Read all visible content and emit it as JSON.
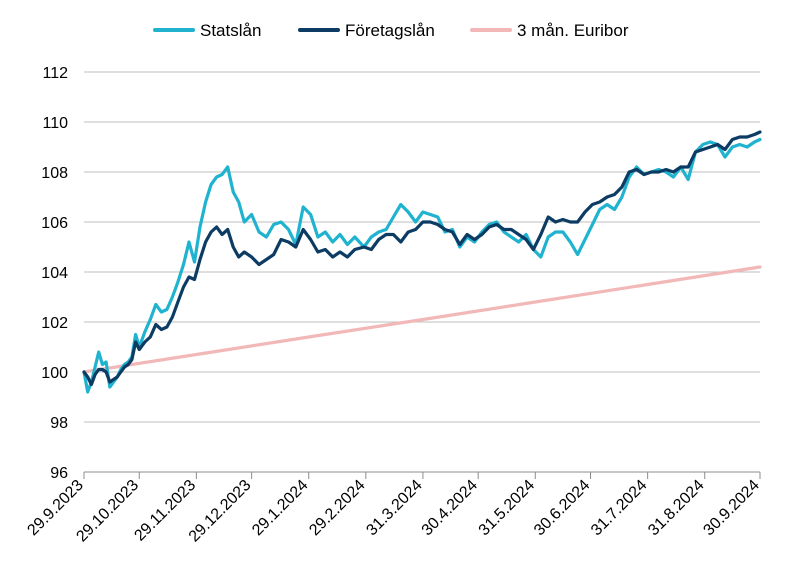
{
  "chart_data": {
    "type": "line",
    "title": "",
    "xlabel": "",
    "ylabel": "",
    "ylim": [
      96,
      112
    ],
    "y_ticks": [
      96,
      98,
      100,
      102,
      104,
      106,
      108,
      110,
      112
    ],
    "x_range": [
      "2023-09-29",
      "2024-09-30"
    ],
    "x_ticks": [
      {
        "date": "2023-09-29",
        "label": "29.9.2023"
      },
      {
        "date": "2023-10-29",
        "label": "29.10.2023"
      },
      {
        "date": "2023-11-29",
        "label": "29.11.2023"
      },
      {
        "date": "2023-12-29",
        "label": "29.12.2023"
      },
      {
        "date": "2024-01-29",
        "label": "29.1.2024"
      },
      {
        "date": "2024-02-29",
        "label": "29.2.2024"
      },
      {
        "date": "2024-03-31",
        "label": "31.3.2024"
      },
      {
        "date": "2024-04-30",
        "label": "30.4.2024"
      },
      {
        "date": "2024-05-31",
        "label": "31.5.2024"
      },
      {
        "date": "2024-06-30",
        "label": "30.6.2024"
      },
      {
        "date": "2024-07-31",
        "label": "31.7.2024"
      },
      {
        "date": "2024-08-31",
        "label": "31.8.2024"
      },
      {
        "date": "2024-09-30",
        "label": "30.9.2024"
      }
    ],
    "grid": "horizontal",
    "legend_position": "top",
    "series": [
      {
        "name": "Statslån",
        "color": "#1fb3cf",
        "points": [
          [
            "2023-09-29",
            100.0
          ],
          [
            "2023-10-01",
            99.2
          ],
          [
            "2023-10-03",
            99.6
          ],
          [
            "2023-10-05",
            100.2
          ],
          [
            "2023-10-07",
            100.8
          ],
          [
            "2023-10-09",
            100.3
          ],
          [
            "2023-10-11",
            100.4
          ],
          [
            "2023-10-13",
            99.4
          ],
          [
            "2023-10-15",
            99.6
          ],
          [
            "2023-10-17",
            99.8
          ],
          [
            "2023-10-19",
            100.1
          ],
          [
            "2023-10-21",
            100.3
          ],
          [
            "2023-10-23",
            100.4
          ],
          [
            "2023-10-25",
            100.6
          ],
          [
            "2023-10-27",
            101.5
          ],
          [
            "2023-10-29",
            101.0
          ],
          [
            "2023-11-01",
            101.6
          ],
          [
            "2023-11-04",
            102.1
          ],
          [
            "2023-11-07",
            102.7
          ],
          [
            "2023-11-10",
            102.4
          ],
          [
            "2023-11-13",
            102.5
          ],
          [
            "2023-11-16",
            103.0
          ],
          [
            "2023-11-19",
            103.6
          ],
          [
            "2023-11-22",
            104.3
          ],
          [
            "2023-11-25",
            105.2
          ],
          [
            "2023-11-28",
            104.4
          ],
          [
            "2023-12-01",
            105.8
          ],
          [
            "2023-12-04",
            106.8
          ],
          [
            "2023-12-07",
            107.5
          ],
          [
            "2023-12-10",
            107.8
          ],
          [
            "2023-12-13",
            107.9
          ],
          [
            "2023-12-16",
            108.2
          ],
          [
            "2023-12-19",
            107.2
          ],
          [
            "2023-12-22",
            106.8
          ],
          [
            "2023-12-25",
            106.0
          ],
          [
            "2023-12-29",
            106.3
          ],
          [
            "2024-01-02",
            105.6
          ],
          [
            "2024-01-06",
            105.4
          ],
          [
            "2024-01-10",
            105.9
          ],
          [
            "2024-01-14",
            106.0
          ],
          [
            "2024-01-18",
            105.7
          ],
          [
            "2024-01-22",
            105.1
          ],
          [
            "2024-01-26",
            106.6
          ],
          [
            "2024-01-30",
            106.3
          ],
          [
            "2024-02-03",
            105.4
          ],
          [
            "2024-02-07",
            105.6
          ],
          [
            "2024-02-11",
            105.2
          ],
          [
            "2024-02-15",
            105.5
          ],
          [
            "2024-02-19",
            105.1
          ],
          [
            "2024-02-23",
            105.4
          ],
          [
            "2024-02-28",
            105.0
          ],
          [
            "2024-03-03",
            105.4
          ],
          [
            "2024-03-07",
            105.6
          ],
          [
            "2024-03-11",
            105.7
          ],
          [
            "2024-03-15",
            106.2
          ],
          [
            "2024-03-19",
            106.7
          ],
          [
            "2024-03-23",
            106.4
          ],
          [
            "2024-03-27",
            106.0
          ],
          [
            "2024-03-31",
            106.4
          ],
          [
            "2024-04-04",
            106.3
          ],
          [
            "2024-04-08",
            106.2
          ],
          [
            "2024-04-12",
            105.6
          ],
          [
            "2024-04-16",
            105.7
          ],
          [
            "2024-04-20",
            105.0
          ],
          [
            "2024-04-24",
            105.4
          ],
          [
            "2024-04-28",
            105.2
          ],
          [
            "2024-05-02",
            105.6
          ],
          [
            "2024-05-06",
            105.9
          ],
          [
            "2024-05-10",
            106.0
          ],
          [
            "2024-05-14",
            105.6
          ],
          [
            "2024-05-18",
            105.4
          ],
          [
            "2024-05-22",
            105.2
          ],
          [
            "2024-05-26",
            105.5
          ],
          [
            "2024-05-30",
            104.9
          ],
          [
            "2024-06-03",
            104.6
          ],
          [
            "2024-06-07",
            105.4
          ],
          [
            "2024-06-11",
            105.6
          ],
          [
            "2024-06-15",
            105.6
          ],
          [
            "2024-06-19",
            105.2
          ],
          [
            "2024-06-23",
            104.7
          ],
          [
            "2024-06-27",
            105.3
          ],
          [
            "2024-07-01",
            105.9
          ],
          [
            "2024-07-05",
            106.5
          ],
          [
            "2024-07-09",
            106.7
          ],
          [
            "2024-07-13",
            106.5
          ],
          [
            "2024-07-17",
            107.0
          ],
          [
            "2024-07-21",
            107.8
          ],
          [
            "2024-07-25",
            108.2
          ],
          [
            "2024-07-29",
            107.9
          ],
          [
            "2024-08-02",
            108.0
          ],
          [
            "2024-08-06",
            108.1
          ],
          [
            "2024-08-10",
            108.0
          ],
          [
            "2024-08-14",
            107.8
          ],
          [
            "2024-08-18",
            108.2
          ],
          [
            "2024-08-22",
            107.7
          ],
          [
            "2024-08-26",
            108.8
          ],
          [
            "2024-08-30",
            109.1
          ],
          [
            "2024-09-03",
            109.2
          ],
          [
            "2024-09-07",
            109.1
          ],
          [
            "2024-09-11",
            108.6
          ],
          [
            "2024-09-15",
            109.0
          ],
          [
            "2024-09-19",
            109.1
          ],
          [
            "2024-09-23",
            109.0
          ],
          [
            "2024-09-27",
            109.2
          ],
          [
            "2024-09-30",
            109.3
          ]
        ]
      },
      {
        "name": "Företagslån",
        "color": "#0c3b63",
        "points": [
          [
            "2023-09-29",
            100.0
          ],
          [
            "2023-10-01",
            99.8
          ],
          [
            "2023-10-03",
            99.5
          ],
          [
            "2023-10-05",
            99.9
          ],
          [
            "2023-10-07",
            100.1
          ],
          [
            "2023-10-09",
            100.1
          ],
          [
            "2023-10-11",
            100.0
          ],
          [
            "2023-10-13",
            99.6
          ],
          [
            "2023-10-15",
            99.7
          ],
          [
            "2023-10-17",
            99.8
          ],
          [
            "2023-10-19",
            100.0
          ],
          [
            "2023-10-21",
            100.2
          ],
          [
            "2023-10-23",
            100.3
          ],
          [
            "2023-10-25",
            100.5
          ],
          [
            "2023-10-27",
            101.2
          ],
          [
            "2023-10-29",
            100.9
          ],
          [
            "2023-11-01",
            101.2
          ],
          [
            "2023-11-04",
            101.4
          ],
          [
            "2023-11-07",
            101.9
          ],
          [
            "2023-11-10",
            101.7
          ],
          [
            "2023-11-13",
            101.8
          ],
          [
            "2023-11-16",
            102.2
          ],
          [
            "2023-11-19",
            102.8
          ],
          [
            "2023-11-22",
            103.4
          ],
          [
            "2023-11-25",
            103.8
          ],
          [
            "2023-11-28",
            103.7
          ],
          [
            "2023-12-01",
            104.5
          ],
          [
            "2023-12-04",
            105.2
          ],
          [
            "2023-12-07",
            105.6
          ],
          [
            "2023-12-10",
            105.8
          ],
          [
            "2023-12-13",
            105.5
          ],
          [
            "2023-12-16",
            105.7
          ],
          [
            "2023-12-19",
            105.0
          ],
          [
            "2023-12-22",
            104.6
          ],
          [
            "2023-12-25",
            104.8
          ],
          [
            "2023-12-29",
            104.6
          ],
          [
            "2024-01-02",
            104.3
          ],
          [
            "2024-01-06",
            104.5
          ],
          [
            "2024-01-10",
            104.7
          ],
          [
            "2024-01-14",
            105.3
          ],
          [
            "2024-01-18",
            105.2
          ],
          [
            "2024-01-22",
            105.0
          ],
          [
            "2024-01-26",
            105.7
          ],
          [
            "2024-01-30",
            105.3
          ],
          [
            "2024-02-03",
            104.8
          ],
          [
            "2024-02-07",
            104.9
          ],
          [
            "2024-02-11",
            104.6
          ],
          [
            "2024-02-15",
            104.8
          ],
          [
            "2024-02-19",
            104.6
          ],
          [
            "2024-02-23",
            104.9
          ],
          [
            "2024-02-28",
            105.0
          ],
          [
            "2024-03-03",
            104.9
          ],
          [
            "2024-03-07",
            105.3
          ],
          [
            "2024-03-11",
            105.5
          ],
          [
            "2024-03-15",
            105.5
          ],
          [
            "2024-03-19",
            105.2
          ],
          [
            "2024-03-23",
            105.6
          ],
          [
            "2024-03-27",
            105.7
          ],
          [
            "2024-03-31",
            106.0
          ],
          [
            "2024-04-04",
            106.0
          ],
          [
            "2024-04-08",
            105.9
          ],
          [
            "2024-04-12",
            105.7
          ],
          [
            "2024-04-16",
            105.6
          ],
          [
            "2024-04-20",
            105.1
          ],
          [
            "2024-04-24",
            105.5
          ],
          [
            "2024-04-28",
            105.3
          ],
          [
            "2024-05-02",
            105.5
          ],
          [
            "2024-05-06",
            105.8
          ],
          [
            "2024-05-10",
            105.9
          ],
          [
            "2024-05-14",
            105.7
          ],
          [
            "2024-05-18",
            105.7
          ],
          [
            "2024-05-22",
            105.5
          ],
          [
            "2024-05-26",
            105.3
          ],
          [
            "2024-05-30",
            104.9
          ],
          [
            "2024-06-03",
            105.5
          ],
          [
            "2024-06-07",
            106.2
          ],
          [
            "2024-06-11",
            106.0
          ],
          [
            "2024-06-15",
            106.1
          ],
          [
            "2024-06-19",
            106.0
          ],
          [
            "2024-06-23",
            106.0
          ],
          [
            "2024-06-27",
            106.4
          ],
          [
            "2024-07-01",
            106.7
          ],
          [
            "2024-07-05",
            106.8
          ],
          [
            "2024-07-09",
            107.0
          ],
          [
            "2024-07-13",
            107.1
          ],
          [
            "2024-07-17",
            107.4
          ],
          [
            "2024-07-21",
            108.0
          ],
          [
            "2024-07-25",
            108.1
          ],
          [
            "2024-07-29",
            107.9
          ],
          [
            "2024-08-02",
            108.0
          ],
          [
            "2024-08-06",
            108.0
          ],
          [
            "2024-08-10",
            108.1
          ],
          [
            "2024-08-14",
            108.0
          ],
          [
            "2024-08-18",
            108.2
          ],
          [
            "2024-08-22",
            108.2
          ],
          [
            "2024-08-26",
            108.8
          ],
          [
            "2024-08-30",
            108.9
          ],
          [
            "2024-09-03",
            109.0
          ],
          [
            "2024-09-07",
            109.1
          ],
          [
            "2024-09-11",
            108.9
          ],
          [
            "2024-09-15",
            109.3
          ],
          [
            "2024-09-19",
            109.4
          ],
          [
            "2024-09-23",
            109.4
          ],
          [
            "2024-09-27",
            109.5
          ],
          [
            "2024-09-30",
            109.6
          ]
        ]
      },
      {
        "name": "3 mån. Euribor",
        "color": "#f2b8b8",
        "points": [
          [
            "2023-09-29",
            100.0
          ],
          [
            "2023-11-29",
            100.7
          ],
          [
            "2024-01-29",
            101.4
          ],
          [
            "2024-03-31",
            102.1
          ],
          [
            "2024-05-31",
            102.8
          ],
          [
            "2024-07-31",
            103.5
          ],
          [
            "2024-09-30",
            104.2
          ]
        ]
      }
    ]
  }
}
